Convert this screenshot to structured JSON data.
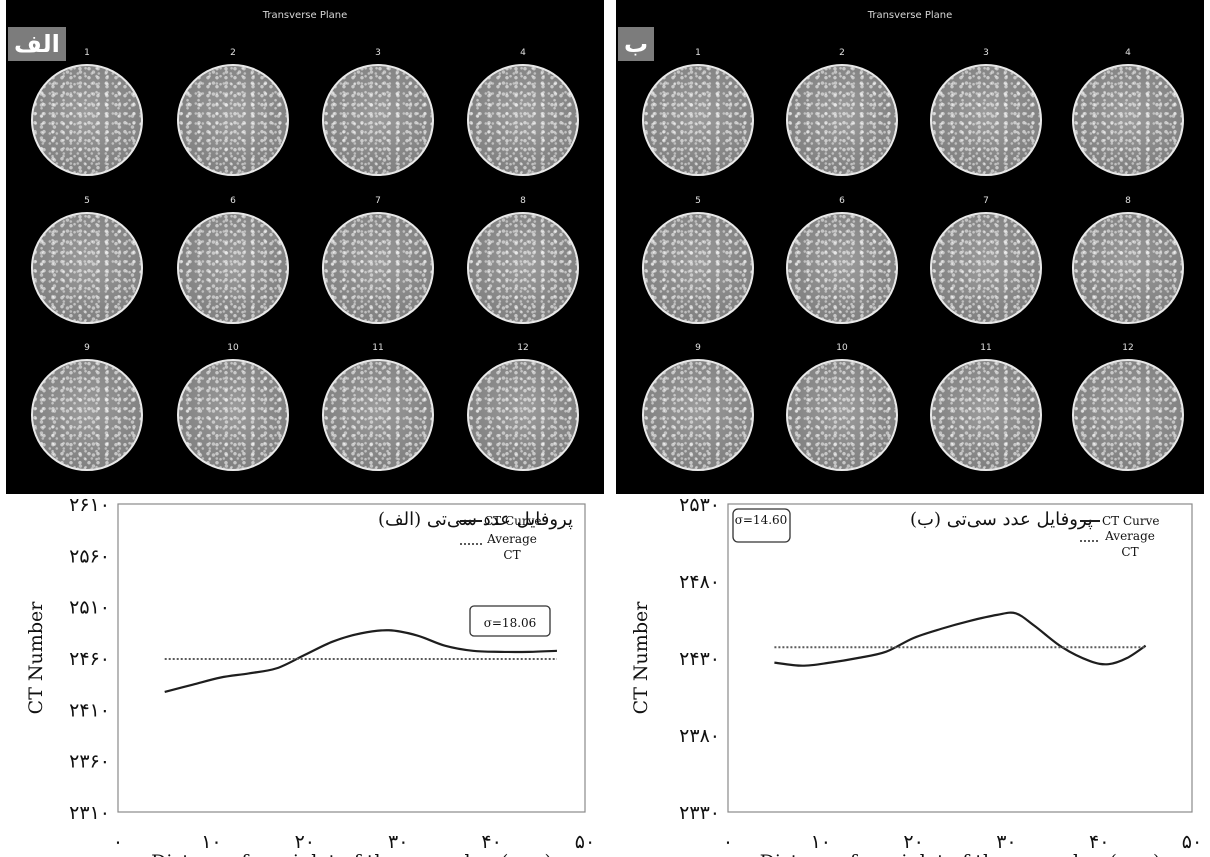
{
  "panels": [
    {
      "id": "A",
      "tag": "الف",
      "plane_title": "Transverse Plane",
      "slices": [
        "1",
        "2",
        "3",
        "4",
        "5",
        "6",
        "7",
        "8",
        "9",
        "10",
        "11",
        "12"
      ]
    },
    {
      "id": "B",
      "tag": "ب",
      "plane_title": "Transverse Plane",
      "slices": [
        "1",
        "2",
        "3",
        "4",
        "5",
        "6",
        "7",
        "8",
        "9",
        "10",
        "11",
        "12"
      ]
    }
  ],
  "colors": {
    "panel_bg": "#000000",
    "curve": "#1e1e1e",
    "average": "#5a5a5a"
  },
  "chart_data": [
    {
      "type": "line",
      "title": "پروفایل عدد سی‌تی (الف)",
      "xlabel": "Distance from inlet of the core plug (mm)",
      "ylabel": "CT Number",
      "xlim": [
        0,
        50
      ],
      "ylim": [
        2310,
        2610
      ],
      "x_ticks": [
        0,
        10,
        20,
        30,
        40,
        50
      ],
      "x_tick_labels": [
        "۰",
        "۱۰",
        "۲۰",
        "۳۰",
        "۴۰",
        "۵۰"
      ],
      "y_ticks": [
        2310,
        2360,
        2410,
        2460,
        2510,
        2560,
        2610
      ],
      "y_tick_labels": [
        "۲۳۱۰",
        "۲۳۶۰",
        "۲۴۱۰",
        "۲۴۶۰",
        "۲۵۱۰",
        "۲۵۶۰",
        "۲۶۱۰"
      ],
      "legend_position": "top-right",
      "sigma_label": "σ=18.06",
      "series": [
        {
          "name": "CT Curve",
          "style": "solid",
          "x": [
            5,
            8,
            11,
            14,
            17,
            20,
            23,
            26,
            29,
            32,
            35,
            38,
            41,
            44,
            47
          ],
          "y": [
            2427,
            2434,
            2441,
            2445,
            2450,
            2463,
            2476,
            2484,
            2487,
            2482,
            2472,
            2467,
            2466,
            2466,
            2467
          ]
        },
        {
          "name": "Average CT",
          "style": "dotted",
          "x": [
            5,
            47
          ],
          "y": [
            2459,
            2459
          ]
        }
      ]
    },
    {
      "type": "line",
      "title": "پروفایل عدد سی‌تی (ب)",
      "xlabel": "Distance from inlet of the core plug (mm)",
      "ylabel": "CT Number",
      "xlim": [
        0,
        50
      ],
      "ylim": [
        2330,
        2530
      ],
      "x_ticks": [
        0,
        10,
        20,
        30,
        40,
        50
      ],
      "x_tick_labels": [
        "۰",
        "۱۰",
        "۲۰",
        "۳۰",
        "۴۰",
        "۵۰"
      ],
      "y_ticks": [
        2330,
        2380,
        2430,
        2480,
        2530
      ],
      "y_tick_labels": [
        "۲۳۳۰",
        "۲۳۸۰",
        "۲۴۳۰",
        "۲۴۸۰",
        "۲۵۳۰"
      ],
      "legend_position": "top-right",
      "sigma_label": "σ=14.60",
      "series": [
        {
          "name": "CT Curve",
          "style": "solid",
          "x": [
            5,
            8,
            11,
            14,
            17,
            20,
            23,
            26,
            29,
            31,
            33,
            36,
            39,
            41,
            43,
            45
          ],
          "y": [
            2427,
            2425,
            2427,
            2430,
            2434,
            2443,
            2449,
            2454,
            2458,
            2459,
            2451,
            2437,
            2428,
            2426,
            2430,
            2438
          ]
        },
        {
          "name": "Average CT",
          "style": "dotted",
          "x": [
            5,
            45
          ],
          "y": [
            2437,
            2437
          ]
        }
      ]
    }
  ]
}
